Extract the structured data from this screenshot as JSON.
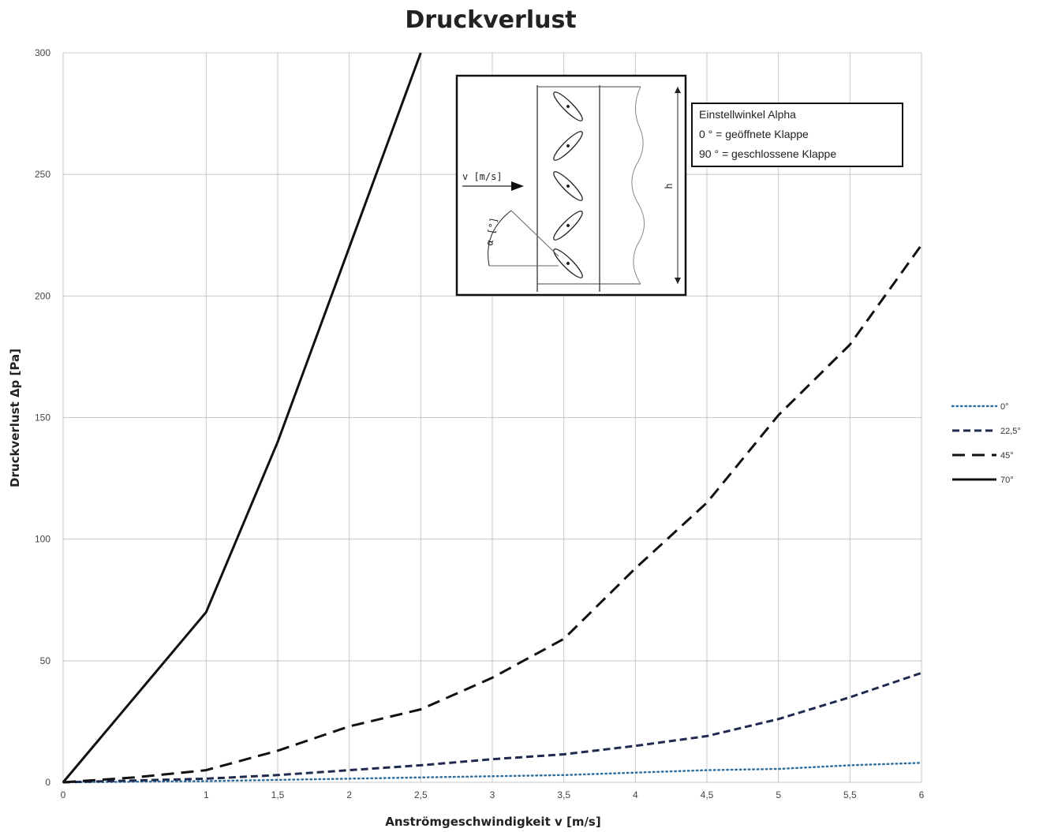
{
  "chart_data": {
    "type": "line",
    "title": "Druckverlust",
    "xlabel": "Anströmgeschwindigkeit v [m/s]",
    "ylabel": "Druckverlust Δp [Pa]",
    "xlim": [
      0,
      6
    ],
    "ylim": [
      0,
      300
    ],
    "grid": true,
    "legend_position": "right",
    "x_ticks": [
      "0",
      "1",
      "1,5",
      "2",
      "2,5",
      "3",
      "3,5",
      "4",
      "4,5",
      "5",
      "5,5",
      "6"
    ],
    "x_tick_values": [
      0,
      1,
      1.5,
      2,
      2.5,
      3,
      3.5,
      4,
      4.5,
      5,
      5.5,
      6
    ],
    "y_ticks": [
      "0",
      "50",
      "100",
      "150",
      "200",
      "250",
      "300"
    ],
    "y_tick_values": [
      0,
      50,
      100,
      150,
      200,
      250,
      300
    ],
    "series": [
      {
        "name": "0°",
        "style": "dotted",
        "color": "#2f6f9f",
        "x": [
          0,
          1,
          1.5,
          2,
          2.5,
          3,
          3.5,
          4,
          4.5,
          5,
          5.5,
          6
        ],
        "y": [
          0,
          0.5,
          1,
          1.5,
          2,
          2.5,
          3,
          4,
          5,
          5.5,
          7,
          8
        ]
      },
      {
        "name": "22,5°",
        "style": "dashed-short",
        "color": "#1f2a4f",
        "x": [
          0,
          1,
          1.5,
          2,
          2.5,
          3,
          3.5,
          4,
          4.5,
          5,
          5.5,
          6
        ],
        "y": [
          0,
          1.5,
          3,
          5,
          7,
          9.5,
          11.5,
          15,
          19,
          26,
          35,
          45
        ]
      },
      {
        "name": "45°",
        "style": "dashed-long",
        "color": "#111111",
        "x": [
          0,
          0.5,
          1,
          1.5,
          2,
          2.5,
          3,
          3.5,
          4,
          4.5,
          5,
          5.5,
          6
        ],
        "y": [
          0,
          2,
          5,
          13,
          23,
          30,
          43,
          59,
          88,
          115,
          151,
          180,
          221
        ]
      },
      {
        "name": "70°",
        "style": "solid",
        "color": "#111111",
        "x": [
          0,
          1,
          1.5,
          2,
          2.5
        ],
        "y": [
          0,
          70,
          140,
          220,
          300
        ]
      }
    ],
    "inset": {
      "flow_label": "v [m/s]",
      "angle_label": "α [°]",
      "height_label": "h",
      "note_lines": [
        "Einstellwinkel Alpha",
        "0 ° = geöffnete Klappe",
        "90 ° = geschlossene Klappe"
      ]
    }
  }
}
